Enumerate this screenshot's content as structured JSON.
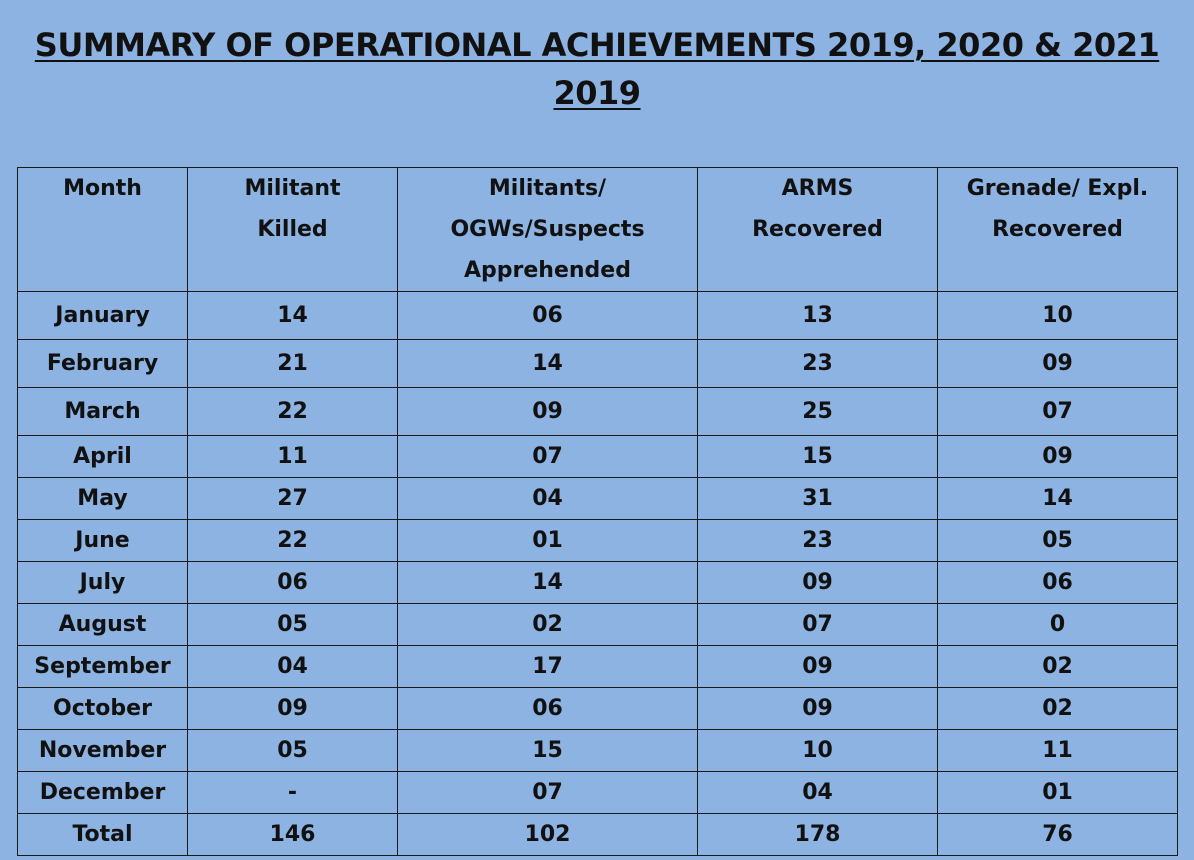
{
  "title": "SUMMARY OF OPERATIONAL ACHIEVEMENTS 2019, 2020 & 2021",
  "subtitle": "2019",
  "table": {
    "headers": [
      [
        "Month"
      ],
      [
        "Militant",
        "Killed"
      ],
      [
        "Militants/",
        "OGWs/Suspects",
        "Apprehended"
      ],
      [
        "ARMS",
        "Recovered"
      ],
      [
        "Grenade/ Expl.",
        "Recovered"
      ]
    ],
    "rows": [
      [
        "January",
        "14",
        "06",
        "13",
        "10"
      ],
      [
        "February",
        "21",
        "14",
        "23",
        "09"
      ],
      [
        "March",
        "22",
        "09",
        "25",
        "07"
      ],
      [
        "April",
        "11",
        "07",
        "15",
        "09"
      ],
      [
        "May",
        "27",
        "04",
        "31",
        "14"
      ],
      [
        "June",
        "22",
        "01",
        "23",
        "05"
      ],
      [
        "July",
        "06",
        "14",
        "09",
        "06"
      ],
      [
        "August",
        "05",
        "02",
        "07",
        "0"
      ],
      [
        "September",
        "04",
        "17",
        "09",
        "02"
      ],
      [
        "October",
        "09",
        "06",
        "09",
        "02"
      ],
      [
        "November",
        "05",
        "15",
        "10",
        "11"
      ],
      [
        "December",
        "-",
        "07",
        "04",
        "01"
      ],
      [
        "Total",
        "146",
        "102",
        "178",
        "76"
      ]
    ]
  }
}
